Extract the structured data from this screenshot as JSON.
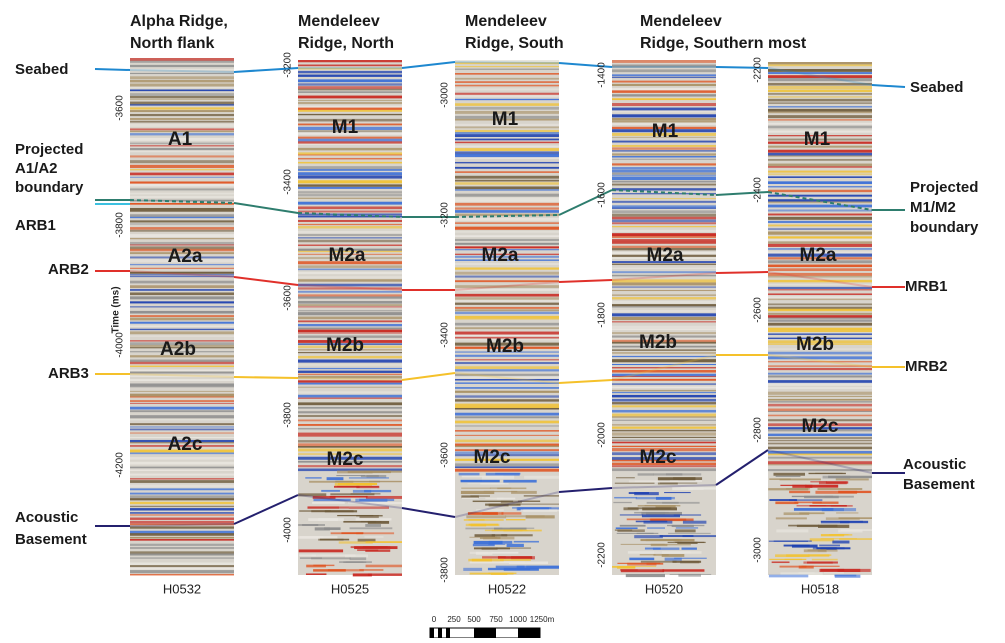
{
  "panels": [
    {
      "title": [
        "Alpha Ridge,",
        "North flank"
      ],
      "id": "H0532",
      "ticks": [
        "-3600",
        "-3800",
        "-4000",
        "-4200"
      ],
      "units": [
        "A1",
        "A2a",
        "A2b",
        "A2c"
      ],
      "axis_label": "Time (ms)"
    },
    {
      "title": [
        "Mendeleev",
        "Ridge, North"
      ],
      "id": "H0525",
      "ticks": [
        "-3200",
        "-3400",
        "-3600",
        "-3800",
        "-4000"
      ],
      "units": [
        "M1",
        "M2a",
        "M2b",
        "M2c"
      ]
    },
    {
      "title": [
        "Mendeleev",
        "Ridge, South"
      ],
      "id": "H0522",
      "ticks": [
        "-3000",
        "-3200",
        "-3400",
        "-3600",
        "-3800"
      ],
      "units": [
        "M1",
        "M2a",
        "M2b",
        "M2c"
      ]
    },
    {
      "title": [
        "Mendeleev",
        "Ridge, Southern most"
      ],
      "id": "H0520",
      "ticks": [
        "-1400",
        "-1600",
        "-1800",
        "-2000",
        "-2200"
      ],
      "units": [
        "M1",
        "M2a",
        "M2b",
        "M2c"
      ]
    },
    {
      "title": [],
      "id": "H0518",
      "ticks": [
        "-2200",
        "-2400",
        "-2600",
        "-2800",
        "-3000"
      ],
      "units": [
        "M1",
        "M2a",
        "M2b",
        "M2c"
      ]
    }
  ],
  "left_labels": {
    "seabed": "Seabed",
    "projected": [
      "Projected",
      "A1/A2",
      "boundary"
    ],
    "arb1": "ARB1",
    "arb2": "ARB2",
    "arb3": "ARB3",
    "basement": [
      "Acoustic",
      "Basement"
    ]
  },
  "right_labels": {
    "seabed": "Seabed",
    "projected": [
      "Projected",
      "M1/M2",
      "boundary"
    ],
    "mrb1": "MRB1",
    "mrb2": "MRB2",
    "basement": [
      "Acoustic",
      "Basement"
    ]
  },
  "scale_bar": [
    "0",
    "250",
    "500",
    "750",
    "1000",
    "1250m"
  ]
}
